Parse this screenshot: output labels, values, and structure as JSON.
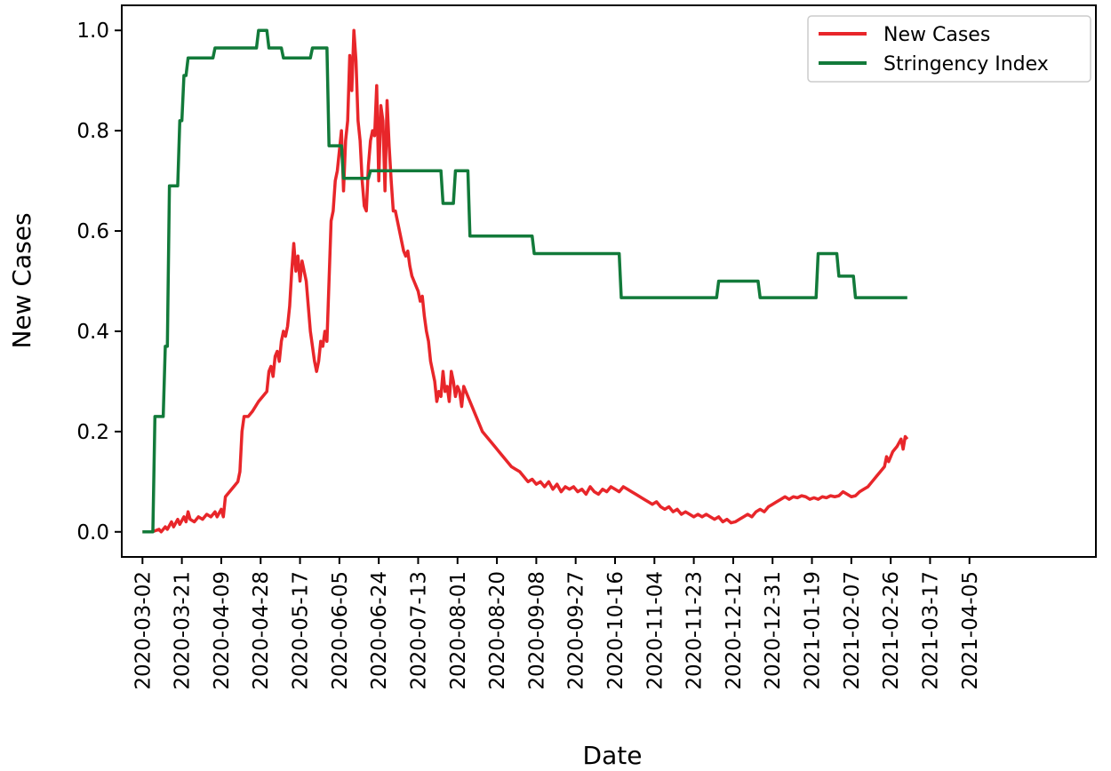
{
  "chart_data": {
    "type": "line",
    "title": "",
    "xlabel": "Date",
    "ylabel": "New Cases",
    "ylim": [
      -0.05,
      1.05
    ],
    "y_ticks": [
      "0.0",
      "0.2",
      "0.4",
      "0.6",
      "0.8",
      "1.0"
    ],
    "x_range_days": [
      -10,
      460
    ],
    "x_ticks": [
      {
        "label": "2020-03-02",
        "day": 0
      },
      {
        "label": "2020-03-21",
        "day": 19
      },
      {
        "label": "2020-04-09",
        "day": 38
      },
      {
        "label": "2020-04-28",
        "day": 57
      },
      {
        "label": "2020-05-17",
        "day": 76
      },
      {
        "label": "2020-06-05",
        "day": 95
      },
      {
        "label": "2020-06-24",
        "day": 114
      },
      {
        "label": "2020-07-13",
        "day": 133
      },
      {
        "label": "2020-08-01",
        "day": 152
      },
      {
        "label": "2020-08-20",
        "day": 171
      },
      {
        "label": "2020-09-08",
        "day": 190
      },
      {
        "label": "2020-09-27",
        "day": 209
      },
      {
        "label": "2020-10-16",
        "day": 228
      },
      {
        "label": "2020-11-04",
        "day": 247
      },
      {
        "label": "2020-11-23",
        "day": 266
      },
      {
        "label": "2020-12-12",
        "day": 285
      },
      {
        "label": "2020-12-31",
        "day": 304
      },
      {
        "label": "2021-01-19",
        "day": 323
      },
      {
        "label": "2021-02-07",
        "day": 342
      },
      {
        "label": "2021-02-26",
        "day": 361
      },
      {
        "label": "2021-03-17",
        "day": 380
      },
      {
        "label": "2021-04-05",
        "day": 399
      }
    ],
    "grid": false,
    "legend_position": "top-right",
    "series": [
      {
        "name": "New Cases",
        "color": "#e8262a",
        "points": [
          [
            0,
            0.0
          ],
          [
            4,
            0.0
          ],
          [
            6,
            0.002
          ],
          [
            8,
            0.005
          ],
          [
            9,
            0.0
          ],
          [
            11,
            0.01
          ],
          [
            12,
            0.005
          ],
          [
            14,
            0.02
          ],
          [
            15,
            0.01
          ],
          [
            17,
            0.025
          ],
          [
            18,
            0.015
          ],
          [
            20,
            0.03
          ],
          [
            21,
            0.02
          ],
          [
            22,
            0.04
          ],
          [
            23,
            0.025
          ],
          [
            25,
            0.02
          ],
          [
            27,
            0.03
          ],
          [
            29,
            0.025
          ],
          [
            31,
            0.035
          ],
          [
            33,
            0.03
          ],
          [
            35,
            0.04
          ],
          [
            36,
            0.03
          ],
          [
            38,
            0.045
          ],
          [
            39,
            0.03
          ],
          [
            40,
            0.07
          ],
          [
            42,
            0.08
          ],
          [
            44,
            0.09
          ],
          [
            46,
            0.1
          ],
          [
            47,
            0.12
          ],
          [
            48,
            0.2
          ],
          [
            49,
            0.23
          ],
          [
            51,
            0.23
          ],
          [
            53,
            0.24
          ],
          [
            56,
            0.26
          ],
          [
            58,
            0.27
          ],
          [
            60,
            0.28
          ],
          [
            61,
            0.32
          ],
          [
            62,
            0.33
          ],
          [
            63,
            0.31
          ],
          [
            64,
            0.35
          ],
          [
            65,
            0.36
          ],
          [
            66,
            0.34
          ],
          [
            67,
            0.38
          ],
          [
            68,
            0.4
          ],
          [
            69,
            0.39
          ],
          [
            70,
            0.41
          ],
          [
            71,
            0.45
          ],
          [
            72,
            0.52
          ],
          [
            73,
            0.575
          ],
          [
            74,
            0.52
          ],
          [
            75,
            0.55
          ],
          [
            76,
            0.5
          ],
          [
            77,
            0.54
          ],
          [
            78,
            0.52
          ],
          [
            79,
            0.5
          ],
          [
            80,
            0.45
          ],
          [
            81,
            0.4
          ],
          [
            82,
            0.37
          ],
          [
            83,
            0.34
          ],
          [
            84,
            0.32
          ],
          [
            85,
            0.34
          ],
          [
            86,
            0.38
          ],
          [
            87,
            0.37
          ],
          [
            88,
            0.4
          ],
          [
            89,
            0.38
          ],
          [
            90,
            0.5
          ],
          [
            91,
            0.62
          ],
          [
            92,
            0.64
          ],
          [
            93,
            0.7
          ],
          [
            94,
            0.72
          ],
          [
            95,
            0.76
          ],
          [
            96,
            0.8
          ],
          [
            97,
            0.68
          ],
          [
            98,
            0.78
          ],
          [
            99,
            0.82
          ],
          [
            100,
            0.95
          ],
          [
            101,
            0.88
          ],
          [
            102,
            1.0
          ],
          [
            103,
            0.94
          ],
          [
            104,
            0.82
          ],
          [
            105,
            0.78
          ],
          [
            106,
            0.7
          ],
          [
            107,
            0.65
          ],
          [
            108,
            0.64
          ],
          [
            109,
            0.73
          ],
          [
            110,
            0.78
          ],
          [
            111,
            0.8
          ],
          [
            112,
            0.79
          ],
          [
            113,
            0.89
          ],
          [
            114,
            0.7
          ],
          [
            115,
            0.85
          ],
          [
            116,
            0.82
          ],
          [
            117,
            0.68
          ],
          [
            118,
            0.86
          ],
          [
            119,
            0.77
          ],
          [
            120,
            0.7
          ],
          [
            121,
            0.64
          ],
          [
            122,
            0.64
          ],
          [
            123,
            0.62
          ],
          [
            124,
            0.6
          ],
          [
            125,
            0.58
          ],
          [
            126,
            0.56
          ],
          [
            127,
            0.55
          ],
          [
            128,
            0.56
          ],
          [
            129,
            0.53
          ],
          [
            130,
            0.51
          ],
          [
            131,
            0.5
          ],
          [
            132,
            0.49
          ],
          [
            133,
            0.48
          ],
          [
            134,
            0.46
          ],
          [
            135,
            0.47
          ],
          [
            136,
            0.43
          ],
          [
            137,
            0.4
          ],
          [
            138,
            0.38
          ],
          [
            139,
            0.34
          ],
          [
            140,
            0.32
          ],
          [
            141,
            0.3
          ],
          [
            142,
            0.26
          ],
          [
            143,
            0.28
          ],
          [
            144,
            0.27
          ],
          [
            145,
            0.32
          ],
          [
            146,
            0.28
          ],
          [
            147,
            0.29
          ],
          [
            148,
            0.26
          ],
          [
            149,
            0.32
          ],
          [
            150,
            0.3
          ],
          [
            151,
            0.27
          ],
          [
            152,
            0.29
          ],
          [
            153,
            0.28
          ],
          [
            154,
            0.25
          ],
          [
            155,
            0.29
          ],
          [
            156,
            0.28
          ],
          [
            158,
            0.26
          ],
          [
            160,
            0.24
          ],
          [
            162,
            0.22
          ],
          [
            164,
            0.2
          ],
          [
            166,
            0.19
          ],
          [
            168,
            0.18
          ],
          [
            170,
            0.17
          ],
          [
            172,
            0.16
          ],
          [
            174,
            0.15
          ],
          [
            176,
            0.14
          ],
          [
            178,
            0.13
          ],
          [
            180,
            0.125
          ],
          [
            182,
            0.12
          ],
          [
            184,
            0.11
          ],
          [
            186,
            0.1
          ],
          [
            188,
            0.105
          ],
          [
            190,
            0.095
          ],
          [
            192,
            0.1
          ],
          [
            194,
            0.09
          ],
          [
            196,
            0.1
          ],
          [
            198,
            0.085
          ],
          [
            200,
            0.095
          ],
          [
            202,
            0.08
          ],
          [
            204,
            0.09
          ],
          [
            206,
            0.085
          ],
          [
            208,
            0.09
          ],
          [
            210,
            0.08
          ],
          [
            212,
            0.085
          ],
          [
            214,
            0.075
          ],
          [
            216,
            0.09
          ],
          [
            218,
            0.08
          ],
          [
            220,
            0.075
          ],
          [
            222,
            0.085
          ],
          [
            224,
            0.08
          ],
          [
            226,
            0.09
          ],
          [
            228,
            0.085
          ],
          [
            230,
            0.08
          ],
          [
            232,
            0.09
          ],
          [
            234,
            0.085
          ],
          [
            236,
            0.08
          ],
          [
            238,
            0.075
          ],
          [
            240,
            0.07
          ],
          [
            242,
            0.065
          ],
          [
            244,
            0.06
          ],
          [
            246,
            0.055
          ],
          [
            248,
            0.06
          ],
          [
            250,
            0.05
          ],
          [
            252,
            0.045
          ],
          [
            254,
            0.05
          ],
          [
            256,
            0.04
          ],
          [
            258,
            0.045
          ],
          [
            260,
            0.035
          ],
          [
            262,
            0.04
          ],
          [
            264,
            0.035
          ],
          [
            266,
            0.03
          ],
          [
            268,
            0.035
          ],
          [
            270,
            0.03
          ],
          [
            272,
            0.035
          ],
          [
            274,
            0.03
          ],
          [
            276,
            0.025
          ],
          [
            278,
            0.03
          ],
          [
            280,
            0.02
          ],
          [
            282,
            0.025
          ],
          [
            284,
            0.018
          ],
          [
            286,
            0.02
          ],
          [
            288,
            0.025
          ],
          [
            290,
            0.03
          ],
          [
            292,
            0.035
          ],
          [
            294,
            0.03
          ],
          [
            296,
            0.04
          ],
          [
            298,
            0.045
          ],
          [
            300,
            0.04
          ],
          [
            302,
            0.05
          ],
          [
            304,
            0.055
          ],
          [
            306,
            0.06
          ],
          [
            308,
            0.065
          ],
          [
            310,
            0.07
          ],
          [
            312,
            0.065
          ],
          [
            314,
            0.07
          ],
          [
            316,
            0.068
          ],
          [
            318,
            0.072
          ],
          [
            320,
            0.07
          ],
          [
            322,
            0.065
          ],
          [
            324,
            0.068
          ],
          [
            326,
            0.065
          ],
          [
            328,
            0.07
          ],
          [
            330,
            0.068
          ],
          [
            332,
            0.072
          ],
          [
            334,
            0.07
          ],
          [
            336,
            0.072
          ],
          [
            338,
            0.08
          ],
          [
            340,
            0.075
          ],
          [
            342,
            0.07
          ],
          [
            344,
            0.072
          ],
          [
            346,
            0.08
          ],
          [
            348,
            0.085
          ],
          [
            350,
            0.09
          ],
          [
            352,
            0.1
          ],
          [
            354,
            0.11
          ],
          [
            356,
            0.12
          ],
          [
            358,
            0.13
          ],
          [
            359,
            0.15
          ],
          [
            360,
            0.14
          ],
          [
            362,
            0.16
          ],
          [
            364,
            0.17
          ],
          [
            366,
            0.185
          ],
          [
            367,
            0.165
          ],
          [
            368,
            0.19
          ],
          [
            369,
            0.185
          ]
        ]
      },
      {
        "name": "Stringency Index",
        "color": "#127a3a",
        "points": [
          [
            0,
            0.0
          ],
          [
            5,
            0.0
          ],
          [
            6,
            0.23
          ],
          [
            10,
            0.23
          ],
          [
            11,
            0.37
          ],
          [
            12,
            0.37
          ],
          [
            13,
            0.69
          ],
          [
            17,
            0.69
          ],
          [
            18,
            0.82
          ],
          [
            19,
            0.82
          ],
          [
            20,
            0.91
          ],
          [
            21,
            0.91
          ],
          [
            22,
            0.945
          ],
          [
            34,
            0.945
          ],
          [
            35,
            0.965
          ],
          [
            55,
            0.965
          ],
          [
            56,
            1.0
          ],
          [
            60,
            1.0
          ],
          [
            61,
            0.965
          ],
          [
            67,
            0.965
          ],
          [
            68,
            0.945
          ],
          [
            81,
            0.945
          ],
          [
            82,
            0.965
          ],
          [
            89,
            0.965
          ],
          [
            90,
            0.77
          ],
          [
            96,
            0.77
          ],
          [
            97,
            0.705
          ],
          [
            109,
            0.705
          ],
          [
            110,
            0.72
          ],
          [
            144,
            0.72
          ],
          [
            145,
            0.655
          ],
          [
            150,
            0.655
          ],
          [
            151,
            0.72
          ],
          [
            157,
            0.72
          ],
          [
            158,
            0.59
          ],
          [
            188,
            0.59
          ],
          [
            189,
            0.555
          ],
          [
            230,
            0.555
          ],
          [
            231,
            0.467
          ],
          [
            277,
            0.467
          ],
          [
            278,
            0.5
          ],
          [
            297,
            0.5
          ],
          [
            298,
            0.467
          ],
          [
            325,
            0.467
          ],
          [
            326,
            0.555
          ],
          [
            335,
            0.555
          ],
          [
            336,
            0.51
          ],
          [
            343,
            0.51
          ],
          [
            344,
            0.467
          ],
          [
            369,
            0.467
          ]
        ]
      }
    ]
  }
}
